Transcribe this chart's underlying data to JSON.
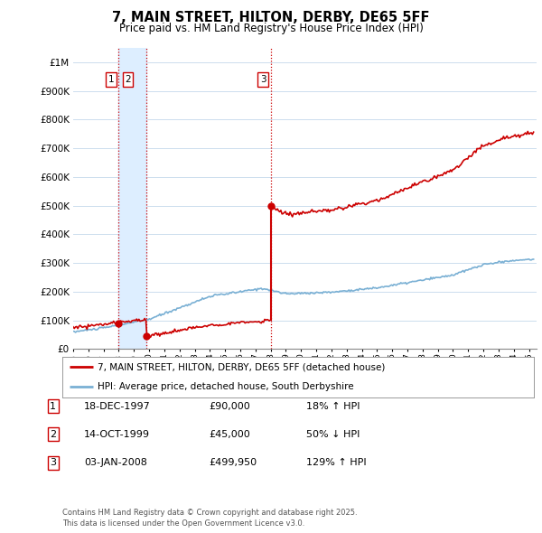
{
  "title": "7, MAIN STREET, HILTON, DERBY, DE65 5FF",
  "subtitle": "Price paid vs. HM Land Registry's House Price Index (HPI)",
  "ylabel_ticks": [
    "£0",
    "£100K",
    "£200K",
    "£300K",
    "£400K",
    "£500K",
    "£600K",
    "£700K",
    "£800K",
    "£900K",
    "£1M"
  ],
  "ytick_values": [
    0,
    100000,
    200000,
    300000,
    400000,
    500000,
    600000,
    700000,
    800000,
    900000,
    1000000
  ],
  "ylim": [
    0,
    1050000
  ],
  "xlim_start": 1995.0,
  "xlim_end": 2025.5,
  "xticks": [
    1995,
    1996,
    1997,
    1998,
    1999,
    2000,
    2001,
    2002,
    2003,
    2004,
    2005,
    2006,
    2007,
    2008,
    2009,
    2010,
    2011,
    2012,
    2013,
    2014,
    2015,
    2016,
    2017,
    2018,
    2019,
    2020,
    2021,
    2022,
    2023,
    2024,
    2025
  ],
  "sale_dates": [
    1997.96,
    1999.79,
    2008.01
  ],
  "sale_prices": [
    90000,
    45000,
    499950
  ],
  "sale_labels": [
    "1",
    "2",
    "3"
  ],
  "vline_color": "#cc0000",
  "vline_style": ":",
  "shaded_region": [
    1997.96,
    1999.79
  ],
  "shaded_color": "#ddeeff",
  "red_line_color": "#cc0000",
  "blue_line_color": "#7ab0d4",
  "legend_red_label": "7, MAIN STREET, HILTON, DERBY, DE65 5FF (detached house)",
  "legend_blue_label": "HPI: Average price, detached house, South Derbyshire",
  "table_data": [
    [
      "1",
      "18-DEC-1997",
      "£90,000",
      "18% ↑ HPI"
    ],
    [
      "2",
      "14-OCT-1999",
      "£45,000",
      "50% ↓ HPI"
    ],
    [
      "3",
      "03-JAN-2008",
      "£499,950",
      "129% ↑ HPI"
    ]
  ],
  "footnote": "Contains HM Land Registry data © Crown copyright and database right 2025.\nThis data is licensed under the Open Government Licence v3.0.",
  "bg_color": "#ffffff",
  "plot_bg_color": "#ffffff",
  "grid_color": "#ccddee"
}
